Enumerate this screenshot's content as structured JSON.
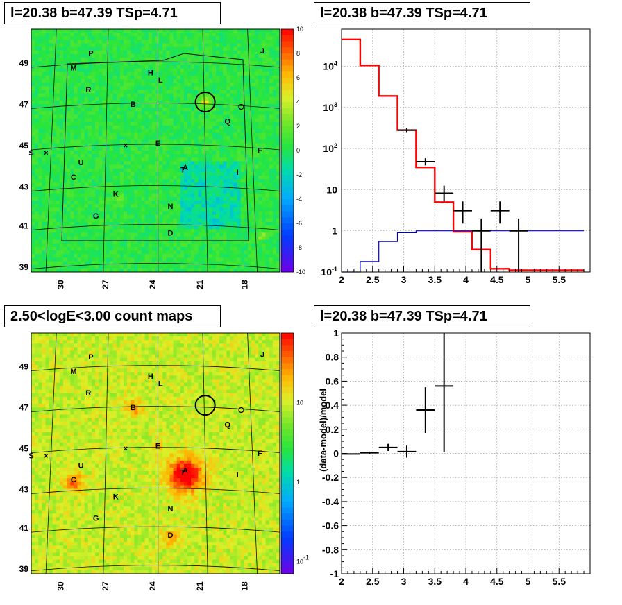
{
  "panels": {
    "tl_title": "l=20.38 b=47.39 TSp=4.71",
    "tr_title": "l=20.38 b=47.39 TSp=4.71",
    "bl_title": "2.50<logE<3.00 count maps",
    "br_title": "l=20.38 b=47.39 TSp=4.71"
  },
  "colors": {
    "red_line": "#ff0000",
    "blue_line": "#0000cc",
    "data": "#000000"
  },
  "chart_data": [
    {
      "type": "heatmap",
      "panel": "top-left residual map",
      "x_ticks": [
        "30",
        "27",
        "24",
        "21",
        "18"
      ],
      "y_ticks": [
        "49",
        "47",
        "45",
        "43",
        "41",
        "39"
      ],
      "colorbar_ticks": [
        "10",
        "8",
        "6",
        "4",
        "2",
        "0",
        "-2",
        "-4",
        "-6",
        "-8",
        "-10"
      ],
      "zlim": [
        -10,
        10
      ],
      "sources": [
        "P",
        "J",
        "M",
        "H",
        "L",
        "R",
        "B",
        "Q",
        "S",
        "E",
        "F",
        "U",
        "A",
        "T",
        "I",
        "C",
        "K",
        "N",
        "G",
        "D"
      ]
    },
    {
      "type": "line",
      "panel": "top-right spectrum",
      "y_scale": "log",
      "xlim": [
        2,
        6
      ],
      "ylim": [
        0.1,
        80000
      ],
      "x_ticks": [
        "2",
        "2.5",
        "3",
        "3.5",
        "4",
        "4.5",
        "5",
        "5.5"
      ],
      "y_ticks": [
        "10^4",
        "10^3",
        "10^2",
        "10",
        "1",
        "10^-1"
      ],
      "grid": true,
      "series": [
        {
          "style": "red-step",
          "edges": [
            2.0,
            2.3,
            2.6,
            2.9,
            3.2,
            3.5,
            3.8,
            4.1,
            4.4,
            4.7,
            5.0,
            5.3,
            5.6,
            5.9
          ],
          "values": [
            45000,
            10500,
            1900,
            280,
            35,
            5,
            0.95,
            0.35,
            0.12,
            0.11,
            0.11,
            0.11,
            0.11
          ]
        },
        {
          "style": "blue-step",
          "edges": [
            2.0,
            2.3,
            2.6,
            2.9,
            3.2,
            3.5,
            3.8,
            4.1,
            4.4,
            4.7,
            5.0,
            5.3,
            5.6,
            5.9
          ],
          "values": [
            0.05,
            0.18,
            0.55,
            0.9,
            1.0,
            1.0,
            1.0,
            1.0,
            1.0,
            1.0,
            1.0,
            1.0,
            1.0
          ]
        },
        {
          "style": "data-points",
          "points": [
            {
              "x": 3.05,
              "y": 280,
              "xerr": 0.15,
              "ylo": 250,
              "yhi": 310
            },
            {
              "x": 3.35,
              "y": 48,
              "xerr": 0.15,
              "ylo": 39,
              "yhi": 58
            },
            {
              "x": 3.65,
              "y": 8.2,
              "xerr": 0.15,
              "ylo": 5.2,
              "yhi": 12.5
            },
            {
              "x": 3.95,
              "y": 3.1,
              "xerr": 0.15,
              "ylo": 1.5,
              "yhi": 5.2
            },
            {
              "x": 4.25,
              "y": 1.0,
              "xerr": 0.15,
              "ylo": 0.1,
              "yhi": 2.0
            },
            {
              "x": 4.55,
              "y": 3.1,
              "xerr": 0.15,
              "ylo": 1.5,
              "yhi": 5.2
            },
            {
              "x": 4.85,
              "y": 1.0,
              "xerr": 0.15,
              "ylo": 0.1,
              "yhi": 2.0
            }
          ]
        }
      ]
    },
    {
      "type": "heatmap",
      "panel": "bottom-left count map",
      "x_ticks": [
        "30",
        "27",
        "24",
        "21",
        "18"
      ],
      "y_ticks": [
        "49",
        "47",
        "45",
        "43",
        "41",
        "39"
      ],
      "colorbar_ticks": [
        "10",
        "1",
        "10^-1"
      ],
      "colorbar_scale": "log",
      "sources": [
        "P",
        "J",
        "M",
        "H",
        "L",
        "R",
        "B",
        "Q",
        "S",
        "E",
        "F",
        "U",
        "A",
        "T",
        "I",
        "C",
        "K",
        "N",
        "G",
        "D"
      ]
    },
    {
      "type": "scatter",
      "panel": "bottom-right residuals",
      "ylabel": "(data-model)/model",
      "xlim": [
        2,
        6
      ],
      "ylim": [
        -1,
        1
      ],
      "x_ticks": [
        "2",
        "2.5",
        "3",
        "3.5",
        "4",
        "4.5",
        "5",
        "5.5"
      ],
      "y_ticks": [
        "1",
        "0.8",
        "0.6",
        "0.4",
        "0.2",
        "0",
        "-0.2",
        "-0.4",
        "-0.6",
        "-0.8",
        "-1"
      ],
      "grid": true,
      "points": [
        {
          "x": 2.15,
          "y": -0.005,
          "xerr": 0.15,
          "yerr": 0.005
        },
        {
          "x": 2.45,
          "y": 0.005,
          "xerr": 0.15,
          "yerr": 0.01
        },
        {
          "x": 2.75,
          "y": 0.05,
          "xerr": 0.15,
          "yerr": 0.03
        },
        {
          "x": 3.05,
          "y": 0.015,
          "xerr": 0.15,
          "yerr": 0.05
        },
        {
          "x": 3.35,
          "y": 0.36,
          "xerr": 0.15,
          "yerr": 0.19
        },
        {
          "x": 3.65,
          "y": 0.56,
          "xerr": 0.15,
          "yerr": 0.55
        }
      ]
    }
  ]
}
